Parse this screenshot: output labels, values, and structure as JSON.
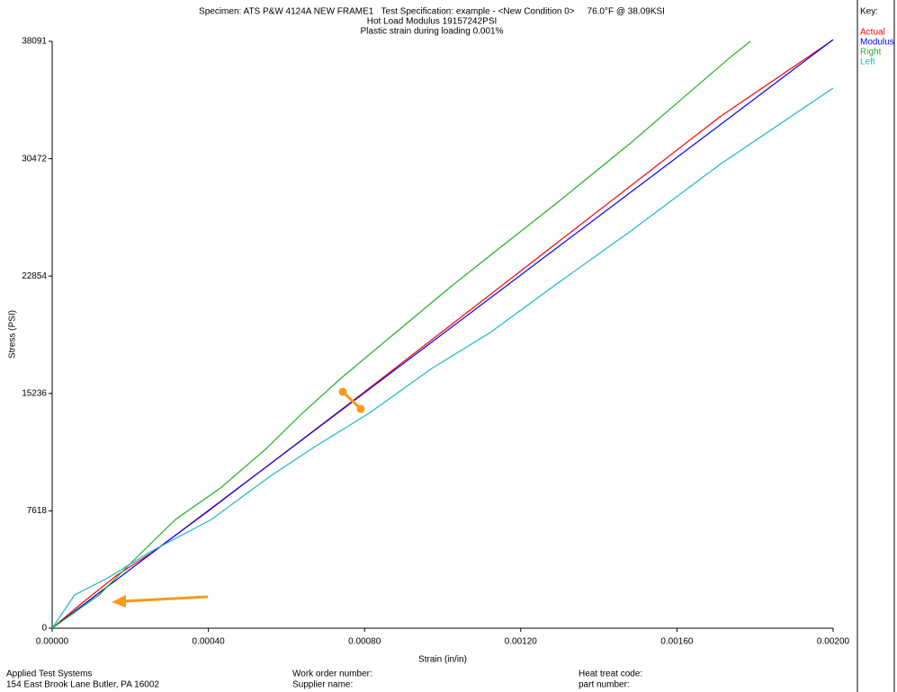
{
  "chart_data": {
    "type": "line",
    "title": "Specimen: ATS P&W 4124A NEW FRAME1   Test Specification: example - <New Condition 0>     76.0°F @ 38.09KSI",
    "subtitles": [
      "Hot Load Modulus 19157242PSI",
      "Plastic strain during loading 0.001%"
    ],
    "x_label": "Strain (in/in)",
    "y_label": "Stress (PSI)",
    "legend_title": "Key:",
    "xlim": [
      0,
      0.002
    ],
    "ylim": [
      0,
      38091
    ],
    "xticks": [
      {
        "value": 0,
        "label": "0.00000"
      },
      {
        "value": 0.0004,
        "label": "0.00040"
      },
      {
        "value": 0.0008,
        "label": "0.00080"
      },
      {
        "value": 0.0012,
        "label": "0.00120"
      },
      {
        "value": 0.0016,
        "label": "0.00160"
      },
      {
        "value": 0.002,
        "label": "0.00200"
      }
    ],
    "yticks": [
      0,
      7618,
      15236,
      22854,
      30472,
      38091
    ],
    "series": [
      {
        "name": "Actual",
        "color": "#ff0000",
        "x": [
          0,
          7.37e-05,
          0.000166,
          0.000258,
          0.000396,
          0.000788,
          0.001249,
          0.00171,
          0.001998
        ],
        "values": [
          0,
          1575,
          3442,
          4958,
          7525,
          15108,
          24149,
          33191,
          38149
        ]
      },
      {
        "name": "Modulus",
        "color": "#0000ff",
        "x": [
          0,
          0.002
        ],
        "values": [
          0,
          38200
        ]
      },
      {
        "name": "Right",
        "color": "#22b022",
        "x": [
          0,
          0.00012,
          0.000212,
          0.000316,
          0.000431,
          0.000546,
          0.000645,
          0.000742,
          0.00088,
          0.001018,
          0.001134,
          0.001295,
          0.001479,
          0.001733,
          0.001788
        ],
        "values": [
          0,
          2158,
          4491,
          7058,
          9100,
          11608,
          14058,
          16274,
          19191,
          22107,
          24440,
          27649,
          31440,
          36981,
          38091
        ]
      },
      {
        "name": "Left",
        "color": "#1ab8c8",
        "x": [
          0,
          5.76e-05,
          0.000143,
          0.000247,
          0.000408,
          0.000558,
          0.000673,
          0.000811,
          0.000972,
          0.001122,
          0.001295,
          0.001479,
          0.00171,
          0.002
        ],
        "values": [
          0,
          2158,
          3266,
          4900,
          7058,
          9858,
          11783,
          13941,
          16858,
          19191,
          22399,
          25724,
          30099,
          35057
        ]
      }
    ]
  },
  "footer": {
    "company": "Applied Test Systems",
    "address": "154 East Brook Lane Butler, PA 16002",
    "work_order": "Work order number:",
    "supplier": "Supplier name:",
    "heat_treat": "Heat treat code:",
    "part_number": "part number:"
  }
}
